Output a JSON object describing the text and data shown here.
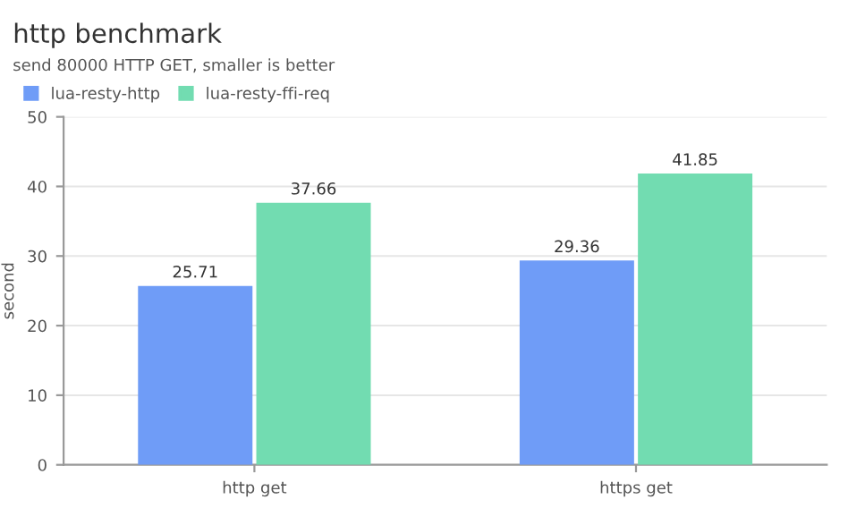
{
  "chart_data": {
    "type": "bar",
    "title": "http benchmark",
    "subtitle": "send 80000 HTTP GET, smaller is better",
    "ylabel": "second",
    "categories": [
      "http get",
      "https get"
    ],
    "series": [
      {
        "name": "lua-resty-http",
        "color": "#6f9cf7",
        "values": [
          25.71,
          29.36
        ]
      },
      {
        "name": "lua-resty-ffi-req",
        "color": "#72dcb1",
        "values": [
          37.66,
          41.85
        ]
      }
    ],
    "ylim": [
      0,
      50
    ],
    "yticks": [
      0,
      10,
      20,
      30,
      40,
      50
    ],
    "grid": "y",
    "legend": "top left",
    "data_labels": true
  }
}
